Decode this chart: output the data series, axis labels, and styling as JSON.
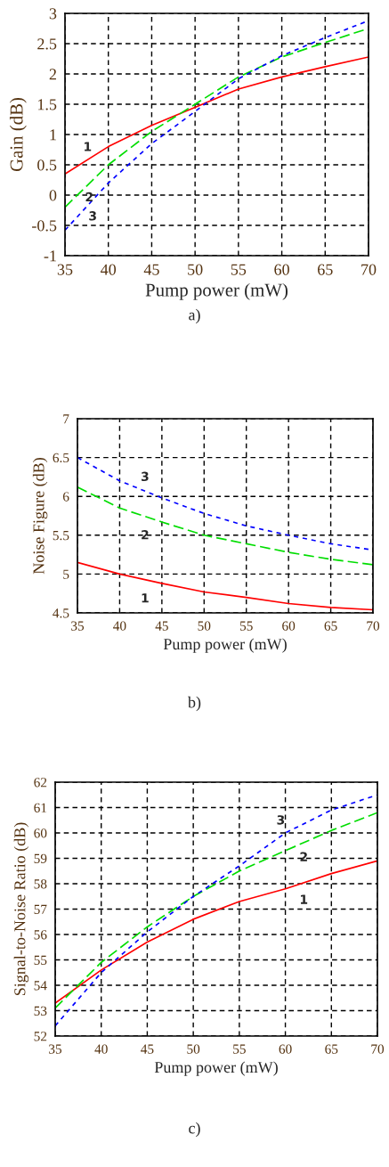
{
  "chart_data": [
    {
      "type": "line",
      "xlabel": "Pump power (mW)",
      "ylabel": "Gain (dB)",
      "annotations": [
        "a)"
      ],
      "x": [
        35,
        40,
        45,
        50,
        55,
        60,
        65,
        70
      ],
      "xlim": [
        35,
        70
      ],
      "xticks": [
        35,
        40,
        45,
        50,
        55,
        60,
        65,
        70
      ],
      "ylim": [
        -1,
        3
      ],
      "yticks": [
        -1,
        -0.5,
        0,
        0.5,
        1,
        1.5,
        2,
        2.5,
        3
      ],
      "grid": true,
      "legend": false,
      "series": [
        {
          "name": "1",
          "color": "#ff0000",
          "line_style": "solid",
          "values": [
            0.35,
            0.8,
            1.15,
            1.45,
            1.75,
            1.95,
            2.12,
            2.28
          ]
        },
        {
          "name": "2",
          "color": "#00dd00",
          "line_style": "dashed",
          "values": [
            -0.2,
            0.5,
            1.05,
            1.5,
            1.95,
            2.28,
            2.52,
            2.75
          ]
        },
        {
          "name": "3",
          "color": "#0000ff",
          "line_style": "dotted",
          "values": [
            -0.58,
            0.2,
            0.85,
            1.38,
            1.92,
            2.3,
            2.6,
            2.88
          ]
        }
      ]
    },
    {
      "type": "line",
      "xlabel": "Pump power (mW)",
      "ylabel": "Noise Figure (dB)",
      "annotations": [
        "b)"
      ],
      "x": [
        35,
        40,
        45,
        50,
        55,
        60,
        65,
        70
      ],
      "xlim": [
        35,
        70
      ],
      "xticks": [
        35,
        40,
        45,
        50,
        55,
        60,
        65,
        70
      ],
      "ylim": [
        4.5,
        7
      ],
      "yticks": [
        4.5,
        5,
        5.5,
        6,
        6.5,
        7
      ],
      "grid": true,
      "legend": false,
      "series": [
        {
          "name": "1",
          "color": "#ff0000",
          "line_style": "solid",
          "values": [
            5.15,
            5.0,
            4.88,
            4.77,
            4.7,
            4.62,
            4.57,
            4.54
          ]
        },
        {
          "name": "2",
          "color": "#00dd00",
          "line_style": "dashed",
          "values": [
            6.12,
            5.85,
            5.67,
            5.5,
            5.39,
            5.28,
            5.19,
            5.12
          ]
        },
        {
          "name": "3",
          "color": "#0000ff",
          "line_style": "dotted",
          "values": [
            6.5,
            6.2,
            5.98,
            5.78,
            5.62,
            5.5,
            5.39,
            5.31
          ]
        }
      ]
    },
    {
      "type": "line",
      "xlabel": "Pump power (mW)",
      "ylabel": "Signal-to-Noise Ratio (dB)",
      "annotations": [
        "c)"
      ],
      "x": [
        35,
        40,
        45,
        50,
        55,
        60,
        65,
        70
      ],
      "xlim": [
        35,
        70
      ],
      "xticks": [
        35,
        40,
        45,
        50,
        55,
        60,
        65,
        70
      ],
      "ylim": [
        52,
        62
      ],
      "yticks": [
        52,
        53,
        54,
        55,
        56,
        57,
        58,
        59,
        60,
        61,
        62
      ],
      "grid": true,
      "legend": false,
      "series": [
        {
          "name": "1",
          "color": "#ff0000",
          "line_style": "solid",
          "values": [
            53.3,
            54.6,
            55.7,
            56.6,
            57.3,
            57.8,
            58.4,
            58.9
          ]
        },
        {
          "name": "2",
          "color": "#00dd00",
          "line_style": "dashed",
          "values": [
            53.1,
            54.9,
            56.3,
            57.5,
            58.5,
            59.3,
            60.1,
            60.8
          ]
        },
        {
          "name": "3",
          "color": "#0000ff",
          "line_style": "dotted",
          "values": [
            52.4,
            54.5,
            56.1,
            57.5,
            58.7,
            60.0,
            60.9,
            61.5
          ]
        }
      ]
    }
  ]
}
